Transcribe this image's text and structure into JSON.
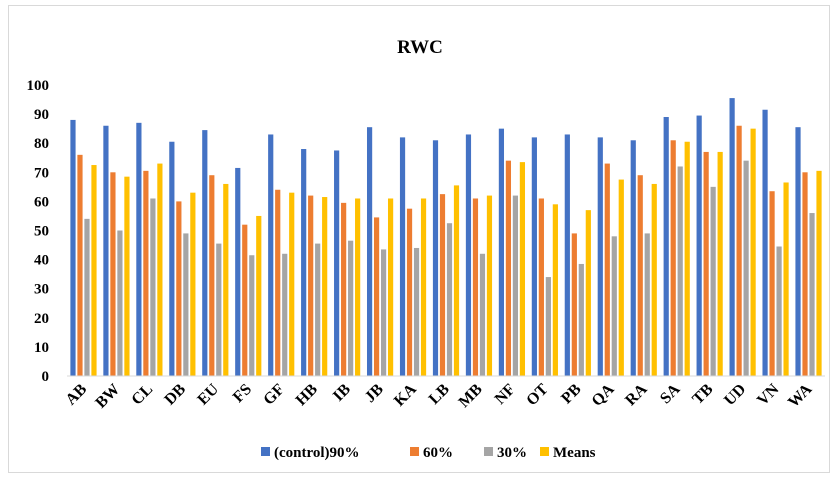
{
  "chart_data": {
    "type": "bar",
    "title": "RWC",
    "xlabel": "",
    "ylabel": "",
    "ylim": [
      0,
      100
    ],
    "yticks": [
      0,
      10,
      20,
      30,
      40,
      50,
      60,
      70,
      80,
      90,
      100
    ],
    "grid": false,
    "legend_position": "bottom",
    "categories": [
      "AB",
      "BW",
      "CL",
      "DB",
      "EU",
      "FS",
      "GF",
      "HB",
      "IB",
      "JB",
      "KA",
      "LB",
      "MB",
      "NF",
      "OT",
      "PB",
      "QA",
      "RA",
      "SA",
      "TB",
      "UD",
      "VN",
      "WA"
    ],
    "series": [
      {
        "name": "(control)90%",
        "color": "#4472C4",
        "values": [
          88,
          86,
          87,
          80.5,
          84.5,
          71.5,
          83,
          78,
          77.5,
          85.5,
          82,
          81,
          83,
          85,
          82,
          83,
          82,
          81,
          89,
          89.5,
          95.5,
          91.5,
          85.5
        ]
      },
      {
        "name": "60%",
        "color": "#ED7D31",
        "values": [
          76,
          70,
          70.5,
          60,
          69,
          52,
          64,
          62,
          59.5,
          54.5,
          57.5,
          62.5,
          61,
          74,
          61,
          49,
          73,
          69,
          81,
          77,
          86,
          63.5,
          70
        ]
      },
      {
        "name": "30%",
        "color": "#A5A5A5",
        "values": [
          54,
          50,
          61,
          49,
          45.5,
          41.5,
          42,
          45.5,
          46.5,
          43.5,
          44,
          52.5,
          42,
          62,
          34,
          38.5,
          48,
          49,
          72,
          65,
          74,
          44.5,
          56
        ]
      },
      {
        "name": "Means",
        "color": "#FFC000",
        "values": [
          72.5,
          68.5,
          73,
          63,
          66,
          55,
          63,
          61.5,
          61,
          61,
          61,
          65.5,
          62,
          73.5,
          59,
          57,
          67.5,
          66,
          80.5,
          77,
          85,
          66.5,
          70.5
        ]
      }
    ]
  }
}
